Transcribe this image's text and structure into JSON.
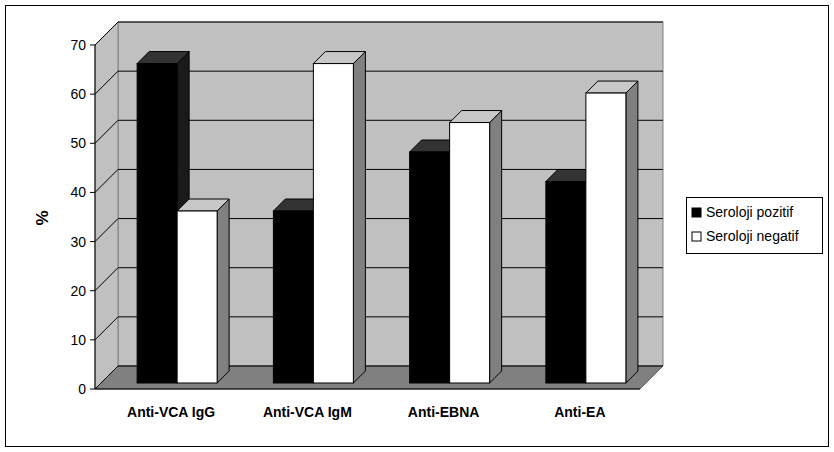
{
  "chart_data": {
    "type": "bar",
    "categories": [
      "Anti-VCA IgG",
      "Anti-VCA IgM",
      "Anti-EBNA",
      "Anti-EA"
    ],
    "series": [
      {
        "name": "Seroloji pozitif",
        "color": "#000000",
        "values": [
          65,
          35,
          47,
          41
        ]
      },
      {
        "name": "Seroloji negatif",
        "color": "#ffffff",
        "values": [
          35,
          65,
          53,
          59
        ]
      }
    ],
    "y_label": "%",
    "ylim": [
      0,
      70
    ],
    "yticks": [
      0,
      10,
      20,
      30,
      40,
      50,
      60,
      70
    ],
    "grid": true,
    "legend": "right"
  }
}
